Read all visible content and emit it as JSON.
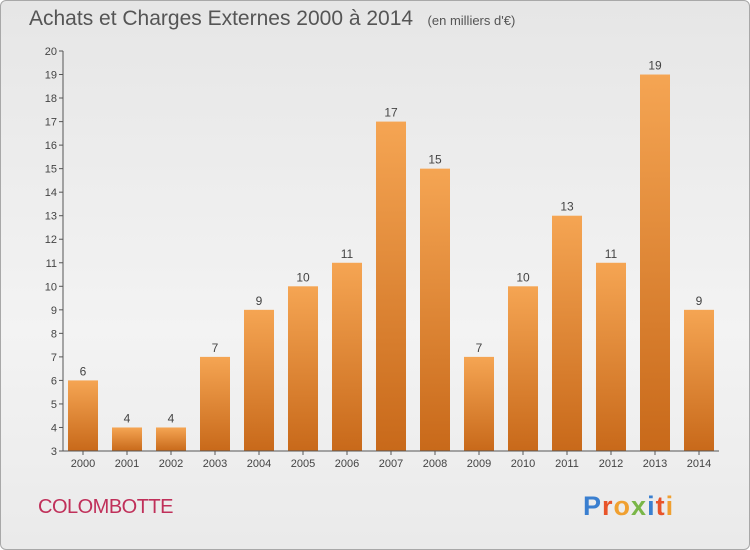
{
  "title": "Achats et Charges Externes 2000 à 2014",
  "unit_label": "(en milliers d'€)",
  "commune": "COLOMBOTTE",
  "logo_text": "Proxiti",
  "colors": {
    "bar_top": "#f5a553",
    "bar_bottom": "#c8691a",
    "commune_text": "#c0305a",
    "axis": "#555555",
    "logo": [
      "#3a7fd0",
      "#e8542a",
      "#f0a030",
      "#7ab648",
      "#3a7fd0",
      "#e8542a",
      "#f0a030"
    ]
  },
  "chart_data": {
    "type": "bar",
    "title": "Achats et Charges Externes 2000 à 2014",
    "xlabel": "",
    "ylabel": "",
    "categories": [
      "2000",
      "2001",
      "2002",
      "2003",
      "2004",
      "2005",
      "2006",
      "2007",
      "2008",
      "2009",
      "2010",
      "2011",
      "2012",
      "2013",
      "2014"
    ],
    "values": [
      6,
      4,
      4,
      7,
      9,
      10,
      11,
      17,
      15,
      7,
      10,
      13,
      11,
      19,
      9
    ],
    "ylim": [
      3,
      20
    ],
    "yticks": [
      3,
      4,
      5,
      6,
      7,
      8,
      9,
      10,
      11,
      12,
      13,
      14,
      15,
      16,
      17,
      18,
      19,
      20
    ],
    "grid": false,
    "data_labels": true
  }
}
